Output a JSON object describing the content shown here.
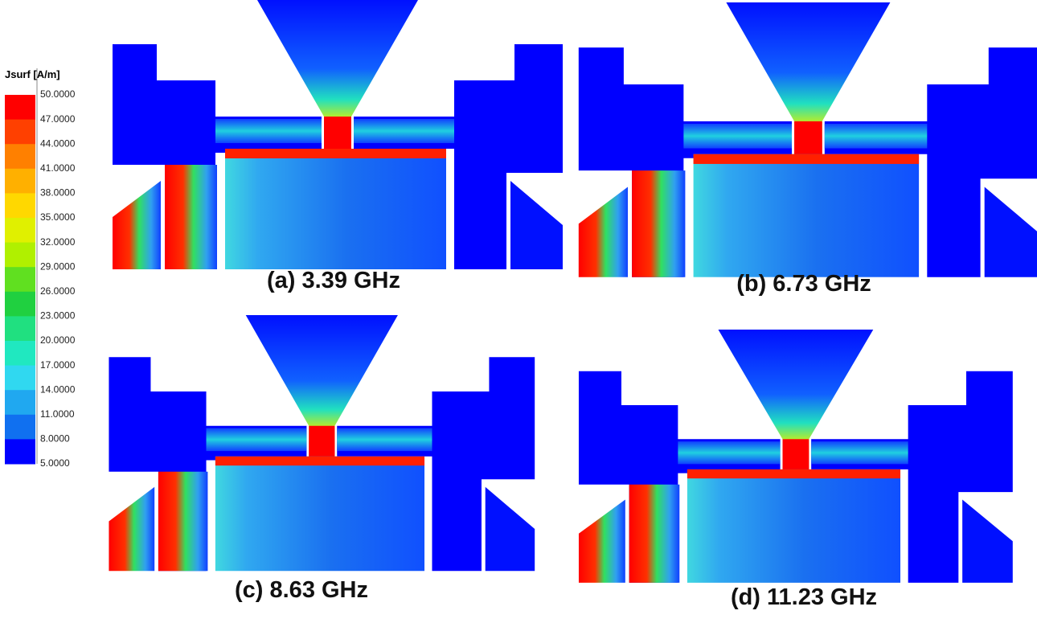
{
  "legend": {
    "title": "Jsurf [A/m]",
    "labels": [
      "50.0000",
      "47.0000",
      "44.0000",
      "41.0000",
      "38.0000",
      "35.0000",
      "32.0000",
      "29.0000",
      "26.0000",
      "23.0000",
      "20.0000",
      "17.0000",
      "14.0000",
      "11.0000",
      "8.0000",
      "5.0000"
    ]
  },
  "panels": [
    {
      "caption": "(a) 3.39 GHz"
    },
    {
      "caption": "(b) 6.73 GHz"
    },
    {
      "caption": "(c) 8.63 GHz"
    },
    {
      "caption": "(d) 11.23 GHz"
    }
  ]
}
